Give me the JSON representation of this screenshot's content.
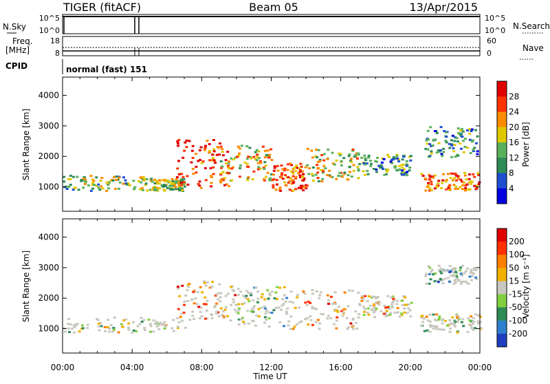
{
  "header": {
    "station": "TIGER (fitACF)",
    "beam": "Beam 05",
    "date": "13/Apr/2015"
  },
  "strips": {
    "nsky": {
      "label": "N.Sky",
      "ticks_left": [
        "10^5",
        "10^0"
      ],
      "ticks_right": [
        "10^5",
        "10^0"
      ],
      "right_label": "N.Search"
    },
    "freq": {
      "label_line1": "Freq.",
      "label_line2": "[MHz]",
      "ticks_left": [
        "18",
        "8"
      ],
      "ticks_right": [
        "60",
        "0"
      ],
      "right_label": "Nave"
    },
    "cpid": {
      "label": "CPID",
      "value": "normal (fast) 151"
    }
  },
  "chart_data": [
    {
      "type": "heatmap",
      "panel": "power",
      "ylabel": "Slant Range [km]",
      "yticks": [
        "1000",
        "2000",
        "3000",
        "4000"
      ],
      "ylim": [
        200,
        4600
      ],
      "colorbar": {
        "label": "Power [dB]",
        "ticks": [
          "4",
          "8",
          "12",
          "16",
          "20",
          "24",
          "28"
        ],
        "colors": [
          "#0000e0",
          "#1f4fd0",
          "#2e8b57",
          "#5bb05b",
          "#e0c800",
          "#ff8c00",
          "#ff3300",
          "#e00000"
        ]
      },
      "regions": [
        {
          "t": [
            0,
            5
          ],
          "r": [
            900,
            1400
          ],
          "level": 0.45
        },
        {
          "t": [
            5,
            7
          ],
          "r": [
            900,
            1300
          ],
          "level": 0.5
        },
        {
          "t": [
            6.5,
            9.5
          ],
          "r": [
            1000,
            2600
          ],
          "level": 0.85
        },
        {
          "t": [
            9,
            12
          ],
          "r": [
            1200,
            2400
          ],
          "level": 0.6
        },
        {
          "t": [
            12,
            14
          ],
          "r": [
            900,
            1800
          ],
          "level": 0.8
        },
        {
          "t": [
            14,
            17
          ],
          "r": [
            1200,
            2300
          ],
          "level": 0.55
        },
        {
          "t": [
            17,
            20
          ],
          "r": [
            1400,
            2100
          ],
          "level": 0.35
        },
        {
          "t": [
            20.5,
            24
          ],
          "r": [
            900,
            1500
          ],
          "level": 0.75
        },
        {
          "t": [
            20.8,
            23.8
          ],
          "r": [
            2000,
            3000
          ],
          "level": 0.3
        }
      ]
    },
    {
      "type": "heatmap",
      "panel": "velocity",
      "ylabel": "Slant Range [km]",
      "xlabel": "Time UT",
      "xticks": [
        "00:00",
        "04:00",
        "08:00",
        "12:00",
        "16:00",
        "20:00",
        "00:00"
      ],
      "yticks": [
        "1000",
        "2000",
        "3000",
        "4000"
      ],
      "ylim": [
        200,
        4600
      ],
      "colorbar": {
        "label": "Velocity [m s⁻¹]",
        "ticks": [
          "200",
          "100",
          "50",
          "15",
          "-15",
          "-50",
          "-100",
          "-200"
        ],
        "colors": [
          "#1f3fbf",
          "#2f7fd0",
          "#2e8b57",
          "#7fcf3f",
          "#c8c8c0",
          "#f0b000",
          "#ff7f00",
          "#ff3000",
          "#e00000"
        ]
      },
      "regions": [
        {
          "t": [
            0,
            7
          ],
          "r": [
            900,
            1400
          ],
          "level": 0.5
        },
        {
          "t": [
            6.5,
            10
          ],
          "r": [
            1300,
            2600
          ],
          "level": 0.75
        },
        {
          "t": [
            10,
            13
          ],
          "r": [
            1100,
            2400
          ],
          "level": 0.4
        },
        {
          "t": [
            13,
            17
          ],
          "r": [
            1000,
            2300
          ],
          "level": 0.7
        },
        {
          "t": [
            17,
            20
          ],
          "r": [
            1400,
            2100
          ],
          "level": 0.6
        },
        {
          "t": [
            20.5,
            24
          ],
          "r": [
            900,
            1500
          ],
          "level": 0.5
        },
        {
          "t": [
            20.8,
            23.8
          ],
          "r": [
            2500,
            3100
          ],
          "level": 0.3
        }
      ]
    }
  ]
}
